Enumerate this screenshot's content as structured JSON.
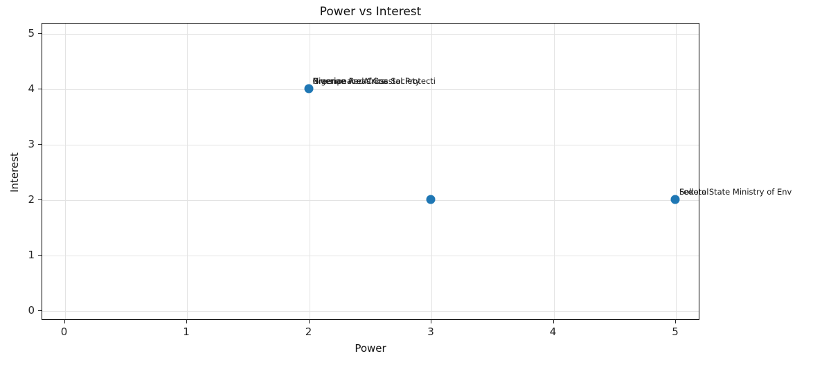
{
  "chart_data": {
    "type": "scatter",
    "title": "Power vs Interest",
    "xlabel": "Power",
    "ylabel": "Interest",
    "xticks": [
      0,
      1,
      2,
      3,
      4,
      5
    ],
    "yticks": [
      0,
      1,
      2,
      3,
      4,
      5
    ],
    "xlim": [
      -0.19,
      5.2
    ],
    "ylim": [
      -0.18,
      5.2
    ],
    "grid": true,
    "legend": false,
    "marker_color": "#1f77b4",
    "annotation_color": "#1a1a1a",
    "points": [
      {
        "power": 2,
        "interest": 4,
        "labels": [
          "Nigerian Red Cross Society",
          "Greenpeace Africa",
          "Riverine Areas Coastal Protecti"
        ]
      },
      {
        "power": 3,
        "interest": 2,
        "labels": []
      },
      {
        "power": 5,
        "interest": 2,
        "labels": [
          "Federal",
          "Sokoto State Ministry of Env"
        ]
      }
    ]
  }
}
